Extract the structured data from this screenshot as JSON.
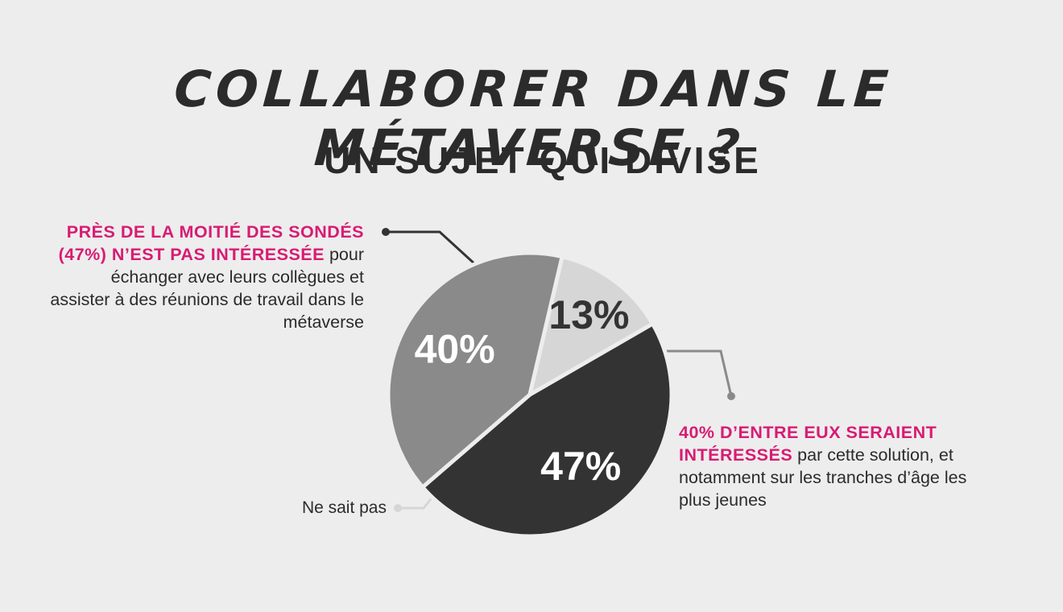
{
  "title": "COLLABORER DANS LE MÉTAVERSE ?",
  "subtitle": "UN SUJET QUI DIVISE",
  "chart_data": {
    "type": "pie",
    "title": "COLLABORER DANS LE MÉTAVERSE ?",
    "subtitle": "UN SUJET QUI DIVISE",
    "slices": [
      {
        "label": "47%",
        "value": 47,
        "color": "#333333",
        "text_color": "#ffffff"
      },
      {
        "label": "40%",
        "value": 40,
        "color": "#8a8a8a",
        "text_color": "#ffffff"
      },
      {
        "label": "13%",
        "value": 13,
        "color": "#d6d6d6",
        "text_color": "#333333"
      }
    ],
    "annotations": {
      "not_interested": {
        "highlight": "PRÈS DE LA MOITIÉ DES SONDÉS (47%) N’EST PAS INTÉRESSÉE",
        "text": " pour échanger avec leurs collègues et assister à des réunions de travail dans le métaverse"
      },
      "interested": {
        "highlight": "40% D’ENTRE EUX SERAIENT INTÉRESSÉS",
        "text": " par cette solution, et notamment sur les tranches d’âge les plus jeunes"
      },
      "unknown": {
        "text": "Ne sait pas"
      }
    }
  },
  "colors": {
    "accent": "#d81b73",
    "background": "#ededed",
    "dark": "#333333",
    "mid": "#8a8a8a",
    "light": "#d6d6d6"
  }
}
